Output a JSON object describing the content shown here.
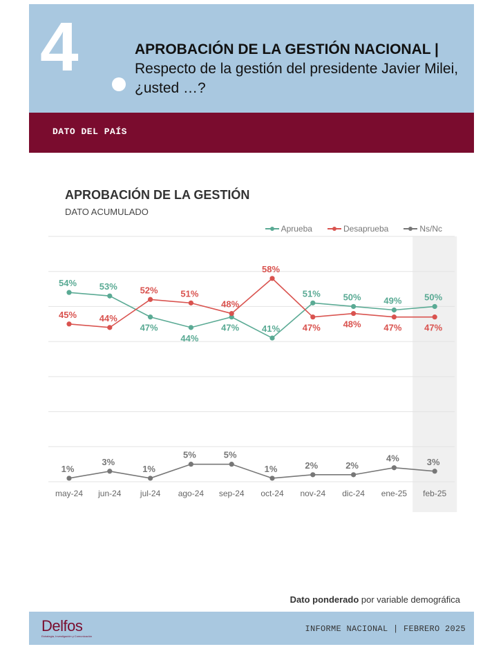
{
  "header": {
    "number": "4",
    "title_bold": "APROBACIÓN DE LA GESTIÓN NACIONAL |",
    "title_rest": " Respecto de la gestión del presidente Javier Milei, ¿usted …?"
  },
  "band": {
    "label": "DATO DEL PAÍS"
  },
  "footer": {
    "note_bold": "Dato ponderado",
    "note_rest": " por variable demográfica",
    "logo": "Delfos",
    "logo_sub": "Estrategia, Investigación y Comunicación",
    "report": "INFORME NACIONAL | FEBRERO 2025"
  },
  "chart_data": {
    "type": "line",
    "title": "APROBACIÓN DE LA GESTIÓN",
    "subtitle": "DATO ACUMULADO",
    "categories": [
      "may-24",
      "jun-24",
      "jul-24",
      "ago-24",
      "sep-24",
      "oct-24",
      "nov-24",
      "dic-24",
      "ene-25",
      "feb-25"
    ],
    "series": [
      {
        "name": "Aprueba",
        "color": "#5aaa94",
        "values": [
          54,
          53,
          47,
          44,
          47,
          41,
          51,
          50,
          49,
          50
        ],
        "label_pos": [
          "above",
          "above",
          "below",
          "below",
          "below",
          "above",
          "above",
          "above",
          "above",
          "above"
        ]
      },
      {
        "name": "Desaprueba",
        "color": "#d9534f",
        "values": [
          45,
          44,
          52,
          51,
          48,
          58,
          47,
          48,
          47,
          47
        ],
        "label_pos": [
          "above",
          "above",
          "above",
          "above",
          "above",
          "above",
          "below",
          "below",
          "below",
          "below"
        ]
      },
      {
        "name": "Ns/Nc",
        "color": "#777777",
        "values": [
          1,
          3,
          1,
          5,
          5,
          1,
          2,
          2,
          4,
          3
        ],
        "label_pos": [
          "above",
          "above",
          "above",
          "above",
          "above",
          "above",
          "above",
          "above",
          "above",
          "above"
        ]
      }
    ],
    "value_suffix": "%",
    "ylim": [
      0,
      70
    ],
    "grid": true,
    "legend": "top-right",
    "highlight_category": "feb-25"
  }
}
